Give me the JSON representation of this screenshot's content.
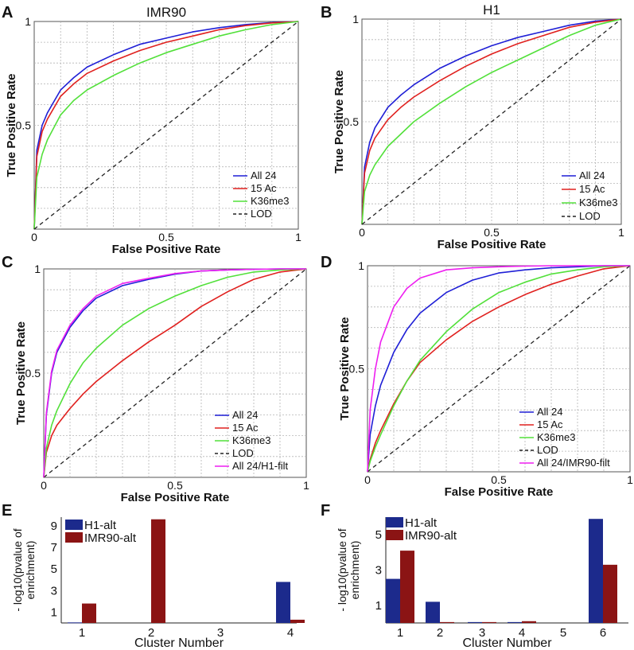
{
  "figure": {
    "panels": [
      {
        "letter": "A",
        "title": "IMR90"
      },
      {
        "letter": "B",
        "title": "H1"
      },
      {
        "letter": "C",
        "title": ""
      },
      {
        "letter": "D",
        "title": ""
      },
      {
        "letter": "E",
        "title": ""
      },
      {
        "letter": "F",
        "title": ""
      }
    ]
  },
  "colors": {
    "all24": "#1f1fd6",
    "ac15": "#e0201e",
    "k36": "#52e03a",
    "lod": "#222222",
    "filt": "#ee1ff0",
    "h1alt": "#1c2a8c",
    "imr90alt": "#8b1414"
  },
  "chart_data": [
    {
      "type": "line",
      "panel": "A",
      "title": "IMR90",
      "xlabel": "False Positive Rate",
      "ylabel": "True Positive Rate",
      "xlim": [
        0,
        1
      ],
      "ylim": [
        0,
        1
      ],
      "xticks": [
        "0",
        "0.5",
        "1"
      ],
      "yticks": [
        "0.5",
        "1"
      ],
      "grid": true,
      "legend": "bottom-right",
      "series": [
        {
          "name": "All 24",
          "color": "#1f1fd6",
          "x": [
            0,
            0.01,
            0.03,
            0.05,
            0.1,
            0.15,
            0.2,
            0.3,
            0.4,
            0.5,
            0.6,
            0.7,
            0.8,
            0.9,
            1
          ],
          "y": [
            0,
            0.38,
            0.5,
            0.56,
            0.67,
            0.73,
            0.78,
            0.84,
            0.89,
            0.92,
            0.95,
            0.97,
            0.985,
            0.995,
            1
          ]
        },
        {
          "name": "15 Ac",
          "color": "#e0201e",
          "x": [
            0,
            0.01,
            0.03,
            0.05,
            0.1,
            0.15,
            0.2,
            0.3,
            0.4,
            0.5,
            0.6,
            0.7,
            0.8,
            0.9,
            1
          ],
          "y": [
            0,
            0.35,
            0.47,
            0.53,
            0.64,
            0.7,
            0.75,
            0.81,
            0.86,
            0.9,
            0.93,
            0.96,
            0.98,
            0.993,
            1
          ]
        },
        {
          "name": "K36me3",
          "color": "#52e03a",
          "x": [
            0,
            0.01,
            0.03,
            0.05,
            0.1,
            0.15,
            0.2,
            0.3,
            0.4,
            0.5,
            0.6,
            0.7,
            0.8,
            0.9,
            1
          ],
          "y": [
            0,
            0.25,
            0.36,
            0.43,
            0.55,
            0.62,
            0.67,
            0.74,
            0.8,
            0.85,
            0.89,
            0.93,
            0.96,
            0.985,
            1
          ]
        },
        {
          "name": "LOD",
          "color": "#222222",
          "dashed": true,
          "x": [
            0,
            1
          ],
          "y": [
            0,
            1
          ]
        }
      ]
    },
    {
      "type": "line",
      "panel": "B",
      "title": "H1",
      "xlabel": "False Positive Rate",
      "ylabel": "True Positive Rate",
      "xlim": [
        0,
        1
      ],
      "ylim": [
        0,
        1
      ],
      "xticks": [
        "0",
        "0.5",
        "1"
      ],
      "yticks": [
        "0.5",
        "1"
      ],
      "grid": true,
      "legend": "bottom-right",
      "series": [
        {
          "name": "All 24",
          "color": "#1f1fd6",
          "x": [
            0,
            0.01,
            0.03,
            0.05,
            0.1,
            0.15,
            0.2,
            0.3,
            0.4,
            0.5,
            0.6,
            0.7,
            0.8,
            0.9,
            1
          ],
          "y": [
            0,
            0.28,
            0.4,
            0.47,
            0.57,
            0.63,
            0.68,
            0.76,
            0.82,
            0.87,
            0.91,
            0.94,
            0.97,
            0.99,
            1
          ]
        },
        {
          "name": "15 Ac",
          "color": "#e0201e",
          "x": [
            0,
            0.01,
            0.03,
            0.05,
            0.1,
            0.15,
            0.2,
            0.3,
            0.4,
            0.5,
            0.6,
            0.7,
            0.8,
            0.9,
            1
          ],
          "y": [
            0,
            0.25,
            0.36,
            0.42,
            0.51,
            0.57,
            0.62,
            0.7,
            0.77,
            0.83,
            0.88,
            0.92,
            0.96,
            0.985,
            1
          ]
        },
        {
          "name": "K36me3",
          "color": "#52e03a",
          "x": [
            0,
            0.01,
            0.03,
            0.05,
            0.1,
            0.15,
            0.2,
            0.3,
            0.4,
            0.5,
            0.6,
            0.7,
            0.8,
            0.9,
            1
          ],
          "y": [
            0,
            0.16,
            0.24,
            0.29,
            0.38,
            0.44,
            0.5,
            0.59,
            0.67,
            0.74,
            0.8,
            0.86,
            0.92,
            0.97,
            1
          ]
        },
        {
          "name": "LOD",
          "color": "#222222",
          "dashed": true,
          "x": [
            0,
            1
          ],
          "y": [
            0,
            1
          ]
        }
      ]
    },
    {
      "type": "line",
      "panel": "C",
      "title": "",
      "xlabel": "False Positive Rate",
      "ylabel": "True Positive Rate",
      "xlim": [
        0,
        1
      ],
      "ylim": [
        0,
        1
      ],
      "xticks": [
        "0",
        "0.5",
        "1"
      ],
      "yticks": [
        "0.5",
        "1"
      ],
      "grid": true,
      "legend": "bottom-right",
      "series": [
        {
          "name": "All 24",
          "color": "#1f1fd6",
          "x": [
            0,
            0.01,
            0.03,
            0.05,
            0.1,
            0.15,
            0.2,
            0.3,
            0.4,
            0.5,
            0.6,
            0.7,
            0.8,
            0.9,
            1
          ],
          "y": [
            0,
            0.3,
            0.5,
            0.6,
            0.72,
            0.8,
            0.86,
            0.92,
            0.95,
            0.975,
            0.99,
            0.995,
            0.998,
            1,
            1
          ]
        },
        {
          "name": "15 Ac",
          "color": "#e0201e",
          "x": [
            0,
            0.01,
            0.03,
            0.05,
            0.1,
            0.15,
            0.2,
            0.3,
            0.4,
            0.5,
            0.6,
            0.7,
            0.8,
            0.9,
            1
          ],
          "y": [
            0,
            0.12,
            0.2,
            0.25,
            0.33,
            0.4,
            0.46,
            0.56,
            0.65,
            0.73,
            0.82,
            0.89,
            0.95,
            0.985,
            1
          ]
        },
        {
          "name": "K36me3",
          "color": "#52e03a",
          "x": [
            0,
            0.01,
            0.03,
            0.05,
            0.1,
            0.15,
            0.2,
            0.3,
            0.4,
            0.5,
            0.6,
            0.7,
            0.8,
            0.9,
            1
          ],
          "y": [
            0,
            0.14,
            0.25,
            0.32,
            0.45,
            0.55,
            0.62,
            0.73,
            0.81,
            0.87,
            0.92,
            0.96,
            0.985,
            0.995,
            1
          ]
        },
        {
          "name": "LOD",
          "color": "#222222",
          "dashed": true,
          "x": [
            0,
            1
          ],
          "y": [
            0,
            1
          ]
        },
        {
          "name": "All 24/H1-filt",
          "color": "#ee1ff0",
          "x": [
            0,
            0.01,
            0.03,
            0.05,
            0.1,
            0.15,
            0.2,
            0.3,
            0.4,
            0.5,
            0.6,
            0.7,
            0.8,
            0.9,
            1
          ],
          "y": [
            0,
            0.31,
            0.51,
            0.61,
            0.73,
            0.81,
            0.87,
            0.93,
            0.955,
            0.978,
            0.99,
            0.995,
            0.998,
            1,
            1
          ]
        }
      ]
    },
    {
      "type": "line",
      "panel": "D",
      "title": "",
      "xlabel": "False Positive Rate",
      "ylabel": "True Positive Rate",
      "xlim": [
        0,
        1
      ],
      "ylim": [
        0,
        1
      ],
      "xticks": [
        "0",
        "0.5",
        "1"
      ],
      "yticks": [
        "0.5",
        "1"
      ],
      "grid": true,
      "legend": "bottom-right",
      "series": [
        {
          "name": "All 24",
          "color": "#1f1fd6",
          "x": [
            0,
            0.01,
            0.03,
            0.05,
            0.1,
            0.15,
            0.2,
            0.3,
            0.4,
            0.5,
            0.6,
            0.7,
            0.8,
            0.9,
            1
          ],
          "y": [
            0,
            0.18,
            0.32,
            0.42,
            0.58,
            0.69,
            0.77,
            0.87,
            0.93,
            0.965,
            0.98,
            0.99,
            0.995,
            1,
            1
          ]
        },
        {
          "name": "15 Ac",
          "color": "#e0201e",
          "x": [
            0,
            0.01,
            0.03,
            0.05,
            0.1,
            0.15,
            0.2,
            0.3,
            0.4,
            0.5,
            0.6,
            0.7,
            0.8,
            0.9,
            1
          ],
          "y": [
            0,
            0.06,
            0.14,
            0.2,
            0.33,
            0.44,
            0.53,
            0.64,
            0.73,
            0.8,
            0.86,
            0.91,
            0.95,
            0.985,
            1
          ]
        },
        {
          "name": "K36me3",
          "color": "#52e03a",
          "x": [
            0,
            0.01,
            0.03,
            0.05,
            0.1,
            0.15,
            0.2,
            0.3,
            0.4,
            0.5,
            0.6,
            0.7,
            0.8,
            0.9,
            1
          ],
          "y": [
            0,
            0.05,
            0.12,
            0.18,
            0.32,
            0.44,
            0.54,
            0.68,
            0.79,
            0.87,
            0.92,
            0.96,
            0.98,
            0.995,
            1
          ]
        },
        {
          "name": "LOD",
          "color": "#222222",
          "dashed": true,
          "x": [
            0,
            1
          ],
          "y": [
            0,
            1
          ]
        },
        {
          "name": "All 24/IMR90-filt",
          "color": "#ee1ff0",
          "x": [
            0,
            0.01,
            0.03,
            0.05,
            0.1,
            0.15,
            0.2,
            0.3,
            0.4,
            0.5,
            0.6,
            0.7,
            0.8,
            0.9,
            1
          ],
          "y": [
            0,
            0.3,
            0.5,
            0.63,
            0.8,
            0.89,
            0.94,
            0.98,
            0.99,
            0.995,
            0.998,
            1,
            1,
            1,
            1
          ]
        }
      ]
    },
    {
      "type": "bar",
      "panel": "E",
      "title": "",
      "xlabel": "Cluster Number",
      "ylabel": "- log10(pvalue of enrichment)",
      "categories": [
        "1",
        "2",
        "3",
        "4"
      ],
      "ylim": [
        0,
        9.8
      ],
      "yticks": [
        "1",
        "3",
        "5",
        "7",
        "9"
      ],
      "grid": false,
      "legend": "top-left",
      "series": [
        {
          "name": "H1-alt",
          "color": "#1c2a8c",
          "values": [
            0.05,
            0.0,
            0.0,
            3.8
          ]
        },
        {
          "name": "IMR90-alt",
          "color": "#8b1414",
          "values": [
            1.8,
            9.6,
            0.0,
            0.3
          ]
        }
      ]
    },
    {
      "type": "bar",
      "panel": "F",
      "title": "",
      "xlabel": "Cluster Number",
      "ylabel": "- log10(pvalue of enrichment)",
      "categories": [
        "1",
        "2",
        "3",
        "4",
        "5",
        "6"
      ],
      "ylim": [
        0,
        6.0
      ],
      "yticks": [
        "1",
        "3",
        "5"
      ],
      "grid": false,
      "legend": "top-left",
      "series": [
        {
          "name": "H1-alt",
          "color": "#1c2a8c",
          "values": [
            2.5,
            1.2,
            0.05,
            0.05,
            0.0,
            5.9
          ]
        },
        {
          "name": "IMR90-alt",
          "color": "#8b1414",
          "values": [
            4.1,
            0.05,
            0.05,
            0.1,
            0.0,
            3.3
          ]
        }
      ]
    }
  ]
}
